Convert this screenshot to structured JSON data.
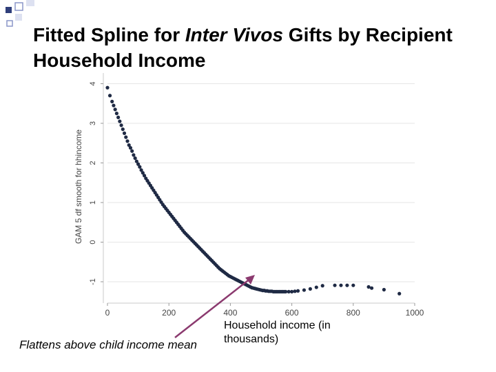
{
  "title": {
    "part1": "Fitted Spline for ",
    "part2_italic": "Inter Vivos",
    "part3": " Gifts by Recipient Household Income"
  },
  "annotation": "Flattens above child income mean",
  "colors": {
    "marker": "#1f2a44",
    "arrow": "#8b3a6f",
    "gridline": "#e6e6e6",
    "deco_square": "#2f3e7a"
  },
  "chart_data": {
    "type": "scatter",
    "title": "",
    "xlabel": "Household income (in thousands)",
    "ylabel": "GAM 5 df smooth for hhincome",
    "xlim": [
      0,
      1000
    ],
    "ylim": [
      -1.4,
      4.2
    ],
    "xticks": [
      "0",
      "200",
      "400",
      "600",
      "800",
      "1000"
    ],
    "yticks": [
      "-1",
      "0",
      "1",
      "2",
      "3",
      "4"
    ],
    "grid": true,
    "x": [
      0,
      8,
      15,
      20,
      25,
      30,
      35,
      40,
      45,
      50,
      55,
      60,
      65,
      70,
      75,
      80,
      85,
      90,
      95,
      100,
      105,
      110,
      115,
      120,
      125,
      130,
      135,
      140,
      145,
      150,
      155,
      160,
      165,
      170,
      175,
      180,
      185,
      190,
      195,
      200,
      205,
      210,
      215,
      220,
      225,
      230,
      235,
      240,
      245,
      250,
      255,
      260,
      265,
      270,
      275,
      280,
      285,
      290,
      295,
      300,
      305,
      310,
      315,
      320,
      325,
      330,
      335,
      340,
      345,
      350,
      355,
      360,
      365,
      370,
      375,
      380,
      385,
      390,
      395,
      400,
      405,
      410,
      415,
      420,
      425,
      430,
      435,
      440,
      445,
      450,
      455,
      460,
      465,
      470,
      475,
      480,
      485,
      490,
      495,
      500,
      505,
      510,
      515,
      520,
      525,
      530,
      535,
      540,
      545,
      550,
      555,
      560,
      565,
      570,
      575,
      580,
      590,
      600,
      610,
      620,
      640,
      660,
      680,
      700,
      740,
      760,
      780,
      800,
      850,
      860,
      900,
      950
    ],
    "y": [
      3.9,
      3.7,
      3.55,
      3.45,
      3.35,
      3.25,
      3.15,
      3.05,
      2.95,
      2.85,
      2.75,
      2.65,
      2.55,
      2.45,
      2.38,
      2.3,
      2.2,
      2.12,
      2.04,
      1.97,
      1.9,
      1.82,
      1.75,
      1.68,
      1.61,
      1.55,
      1.49,
      1.43,
      1.37,
      1.31,
      1.25,
      1.19,
      1.13,
      1.07,
      1.01,
      0.95,
      0.9,
      0.85,
      0.8,
      0.75,
      0.7,
      0.65,
      0.6,
      0.55,
      0.5,
      0.45,
      0.4,
      0.35,
      0.3,
      0.25,
      0.21,
      0.17,
      0.13,
      0.09,
      0.05,
      0.01,
      -0.03,
      -0.07,
      -0.11,
      -0.15,
      -0.19,
      -0.23,
      -0.27,
      -0.31,
      -0.35,
      -0.39,
      -0.43,
      -0.47,
      -0.51,
      -0.55,
      -0.59,
      -0.63,
      -0.67,
      -0.7,
      -0.73,
      -0.76,
      -0.79,
      -0.82,
      -0.85,
      -0.87,
      -0.89,
      -0.91,
      -0.93,
      -0.95,
      -0.97,
      -0.99,
      -1.01,
      -1.03,
      -1.05,
      -1.07,
      -1.09,
      -1.11,
      -1.13,
      -1.15,
      -1.16,
      -1.17,
      -1.18,
      -1.19,
      -1.2,
      -1.21,
      -1.22,
      -1.22,
      -1.23,
      -1.23,
      -1.24,
      -1.24,
      -1.24,
      -1.25,
      -1.25,
      -1.25,
      -1.25,
      -1.25,
      -1.25,
      -1.25,
      -1.25,
      -1.25,
      -1.25,
      -1.25,
      -1.24,
      -1.23,
      -1.21,
      -1.18,
      -1.14,
      -1.1,
      -1.09,
      -1.09,
      -1.09,
      -1.09,
      -1.13,
      -1.16,
      -1.2,
      -1.3
    ]
  }
}
